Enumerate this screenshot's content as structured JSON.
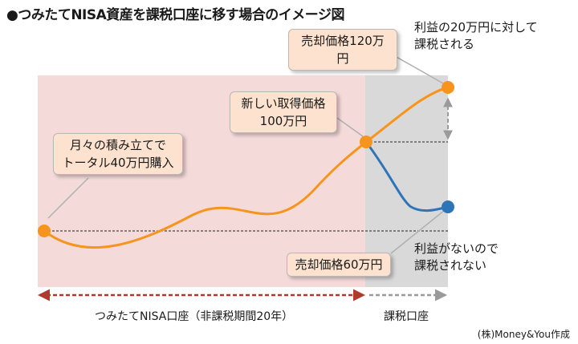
{
  "title": "●つみたてNISA資産を課税口座に移す場合のイメージ図",
  "callouts": {
    "monthly": [
      "月々の積み立てで",
      "トータル40万円購入"
    ],
    "new_cost": [
      "新しい取得価格",
      "100万円"
    ],
    "sell_high": "売却価格120万円",
    "sell_low": "売却価格60万円"
  },
  "notes": {
    "taxed": [
      "利益の20万円に対して",
      "課税される"
    ],
    "not_taxed": [
      "利益がないので",
      "課税されない"
    ]
  },
  "regions": {
    "nisa": "つみたてNISA口座（非課税期間20年）",
    "taxable": "課税口座"
  },
  "credit": "(株)Money&You作成",
  "colors": {
    "nisa_bg": "#f5dada",
    "taxable_bg": "#d9d9d9",
    "orange_line": "#f7941d",
    "blue_line": "#2e75b6",
    "nisa_arrow": "#b03a2e",
    "taxable_arrow": "#9a9a9a",
    "callout_bg": "#fde3cf"
  }
}
